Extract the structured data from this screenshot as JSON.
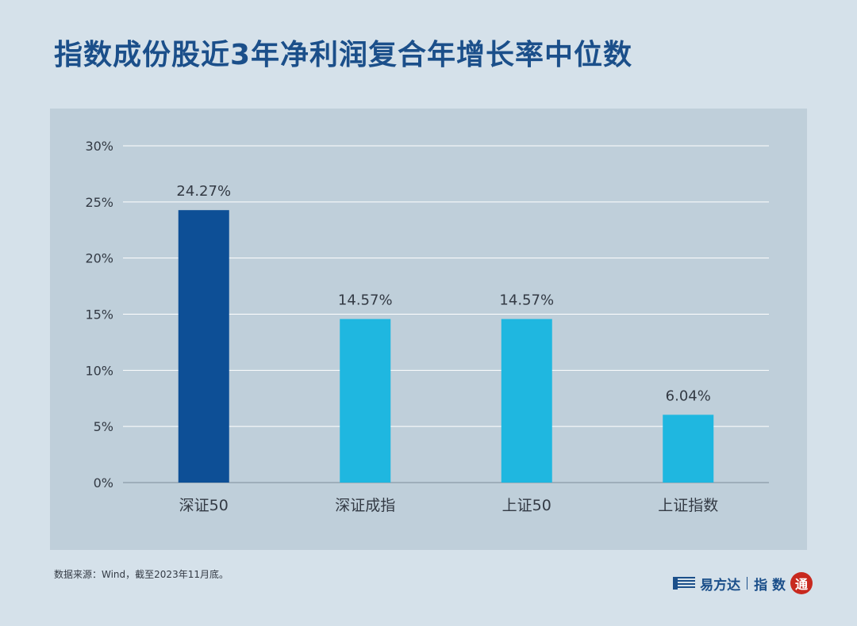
{
  "title": "指数成份股近3年净利润复合年增长率中位数",
  "footer": {
    "source": "数据来源：Wind，截至2023年11月底。",
    "brand_name": "易方达",
    "brand_sub": "指 数",
    "brand_seal": "通"
  },
  "colors": {
    "background": "#d5e1ea",
    "panel": "#bfcfda",
    "title": "#1b4f8a",
    "bar_highlight": "#0d4f96",
    "bar_normal": "#1fb7e0",
    "grid": "#ffffff",
    "axis_text": "#333a44"
  },
  "chart_data": {
    "type": "bar",
    "categories": [
      "深证50",
      "深证成指",
      "上证50",
      "上证指数"
    ],
    "values": [
      24.27,
      14.57,
      14.57,
      6.04
    ],
    "value_labels": [
      "24.27%",
      "14.57%",
      "14.57%",
      "6.04%"
    ],
    "highlight_index": 0,
    "ylim": [
      0,
      30
    ],
    "yticks": [
      0,
      5,
      10,
      15,
      20,
      25,
      30
    ],
    "ytick_labels": [
      "0%",
      "5%",
      "10%",
      "15%",
      "20%",
      "25%",
      "30%"
    ],
    "grid": true,
    "xlabel": "",
    "ylabel": ""
  }
}
